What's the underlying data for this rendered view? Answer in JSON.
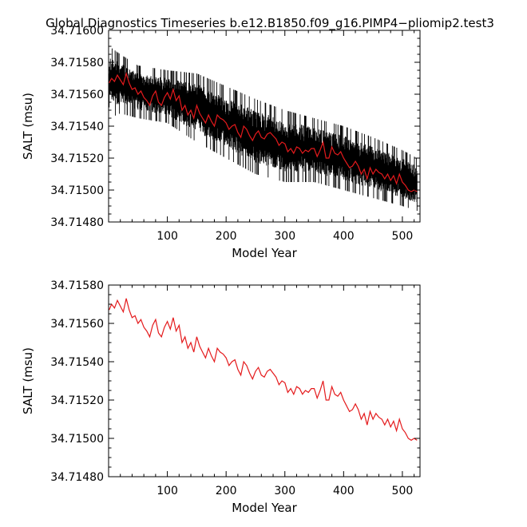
{
  "figure_title": "Global Diagnostics Timeseries b.e12.B1850.f09_g16.PIMP4−pliomip2.test3",
  "colors": {
    "monthly": "#000000",
    "annual": "#e41a1c",
    "frame": "#000000",
    "background": "#ffffff"
  },
  "chart_data": [
    {
      "type": "line",
      "xlabel": "Model Year",
      "ylabel": "SALT (msu)",
      "xlim": [
        0,
        530
      ],
      "ylim": [
        34.7148,
        34.716
      ],
      "xticks": [
        100,
        200,
        300,
        400,
        500
      ],
      "yticks": [
        34.7148,
        34.715,
        34.7152,
        34.7154,
        34.7156,
        34.7158,
        34.716
      ],
      "ytick_labels": [
        "34.71480",
        "34.71500",
        "34.71520",
        "34.71540",
        "34.71560",
        "34.71580",
        "34.71600"
      ],
      "grid": false,
      "series": [
        {
          "kind": "monthly",
          "color": "#000000",
          "x_start": 1,
          "x_end": 525,
          "envelope_upper": [
            [
              1,
              34.7159
            ],
            [
              20,
              34.71585
            ],
            [
              50,
              34.71578
            ],
            [
              100,
              34.71575
            ],
            [
              150,
              34.71573
            ],
            [
              200,
              34.71565
            ],
            [
              250,
              34.71557
            ],
            [
              300,
              34.7155
            ],
            [
              350,
              34.71545
            ],
            [
              400,
              34.7154
            ],
            [
              450,
              34.71533
            ],
            [
              500,
              34.71525
            ],
            [
              525,
              34.7152
            ]
          ],
          "envelope_lower": [
            [
              1,
              34.71545
            ],
            [
              20,
              34.71548
            ],
            [
              50,
              34.71545
            ],
            [
              100,
              34.71542
            ],
            [
              150,
              34.7153
            ],
            [
              200,
              34.7152
            ],
            [
              250,
              34.7151
            ],
            [
              300,
              34.71505
            ],
            [
              350,
              34.71505
            ],
            [
              400,
              34.715
            ],
            [
              450,
              34.71495
            ],
            [
              500,
              34.7149
            ],
            [
              525,
              34.71487
            ]
          ]
        },
        {
          "kind": "annual",
          "color": "#e41a1c",
          "x": [
            1,
            5,
            10,
            15,
            20,
            25,
            30,
            35,
            40,
            45,
            50,
            55,
            60,
            65,
            70,
            75,
            80,
            85,
            90,
            95,
            100,
            105,
            110,
            115,
            120,
            125,
            130,
            135,
            140,
            145,
            150,
            155,
            160,
            165,
            170,
            175,
            180,
            185,
            190,
            195,
            200,
            205,
            210,
            215,
            220,
            225,
            230,
            235,
            240,
            245,
            250,
            255,
            260,
            265,
            270,
            275,
            280,
            285,
            290,
            295,
            300,
            305,
            310,
            315,
            320,
            325,
            330,
            335,
            340,
            345,
            350,
            355,
            360,
            365,
            370,
            375,
            380,
            385,
            390,
            395,
            400,
            405,
            410,
            415,
            420,
            425,
            430,
            435,
            440,
            445,
            450,
            455,
            460,
            465,
            470,
            475,
            480,
            485,
            490,
            495,
            500,
            505,
            510,
            515,
            520,
            525
          ],
          "y": [
            34.71567,
            34.7157,
            34.71568,
            34.71572,
            34.71569,
            34.71566,
            34.71573,
            34.71567,
            34.71563,
            34.71564,
            34.7156,
            34.71562,
            34.71558,
            34.71556,
            34.71553,
            34.71559,
            34.71562,
            34.71555,
            34.71553,
            34.71558,
            34.71561,
            34.71557,
            34.71563,
            34.71556,
            34.71559,
            34.7155,
            34.71553,
            34.71547,
            34.7155,
            34.71545,
            34.71553,
            34.71548,
            34.71545,
            34.71542,
            34.71547,
            34.71543,
            34.7154,
            34.71547,
            34.71545,
            34.71544,
            34.71542,
            34.71538,
            34.7154,
            34.71541,
            34.71536,
            34.71533,
            34.7154,
            34.71538,
            34.71534,
            34.71531,
            34.71535,
            34.71537,
            34.71533,
            34.71532,
            34.71535,
            34.71536,
            34.71534,
            34.71532,
            34.71528,
            34.7153,
            34.71529,
            34.71524,
            34.71526,
            34.71523,
            34.71527,
            34.71526,
            34.71523,
            34.71525,
            34.71524,
            34.71526,
            34.71526,
            34.71521,
            34.71525,
            34.7153,
            34.7152,
            34.7152,
            34.71527,
            34.71523,
            34.71522,
            34.71524,
            34.7152,
            34.71517,
            34.71514,
            34.71515,
            34.71518,
            34.71515,
            34.7151,
            34.71513,
            34.71507,
            34.71514,
            34.7151,
            34.71513,
            34.71511,
            34.7151,
            34.71507,
            34.7151,
            34.71506,
            34.71509,
            34.71504,
            34.7151,
            34.71505,
            34.71503,
            34.715,
            34.71499,
            34.715,
            34.71499
          ]
        }
      ]
    },
    {
      "type": "line",
      "xlabel": "Model Year",
      "ylabel": "SALT (msu)",
      "xlim": [
        0,
        530
      ],
      "ylim": [
        34.7148,
        34.7158
      ],
      "xticks": [
        100,
        200,
        300,
        400,
        500
      ],
      "yticks": [
        34.7148,
        34.715,
        34.7152,
        34.7154,
        34.7156,
        34.7158
      ],
      "ytick_labels": [
        "34.71480",
        "34.71500",
        "34.71520",
        "34.71540",
        "34.71560",
        "34.71580"
      ],
      "grid": false,
      "series": [
        {
          "kind": "annual",
          "color": "#e41a1c",
          "x": [
            1,
            5,
            10,
            15,
            20,
            25,
            30,
            35,
            40,
            45,
            50,
            55,
            60,
            65,
            70,
            75,
            80,
            85,
            90,
            95,
            100,
            105,
            110,
            115,
            120,
            125,
            130,
            135,
            140,
            145,
            150,
            155,
            160,
            165,
            170,
            175,
            180,
            185,
            190,
            195,
            200,
            205,
            210,
            215,
            220,
            225,
            230,
            235,
            240,
            245,
            250,
            255,
            260,
            265,
            270,
            275,
            280,
            285,
            290,
            295,
            300,
            305,
            310,
            315,
            320,
            325,
            330,
            335,
            340,
            345,
            350,
            355,
            360,
            365,
            370,
            375,
            380,
            385,
            390,
            395,
            400,
            405,
            410,
            415,
            420,
            425,
            430,
            435,
            440,
            445,
            450,
            455,
            460,
            465,
            470,
            475,
            480,
            485,
            490,
            495,
            500,
            505,
            510,
            515,
            520,
            525
          ],
          "y": [
            34.71567,
            34.7157,
            34.71568,
            34.71572,
            34.71569,
            34.71566,
            34.71573,
            34.71567,
            34.71563,
            34.71564,
            34.7156,
            34.71562,
            34.71558,
            34.71556,
            34.71553,
            34.71559,
            34.71562,
            34.71555,
            34.71553,
            34.71558,
            34.71561,
            34.71557,
            34.71563,
            34.71556,
            34.71559,
            34.7155,
            34.71553,
            34.71547,
            34.7155,
            34.71545,
            34.71553,
            34.71548,
            34.71545,
            34.71542,
            34.71547,
            34.71543,
            34.7154,
            34.71547,
            34.71545,
            34.71544,
            34.71542,
            34.71538,
            34.7154,
            34.71541,
            34.71536,
            34.71533,
            34.7154,
            34.71538,
            34.71534,
            34.71531,
            34.71535,
            34.71537,
            34.71533,
            34.71532,
            34.71535,
            34.71536,
            34.71534,
            34.71532,
            34.71528,
            34.7153,
            34.71529,
            34.71524,
            34.71526,
            34.71523,
            34.71527,
            34.71526,
            34.71523,
            34.71525,
            34.71524,
            34.71526,
            34.71526,
            34.71521,
            34.71525,
            34.7153,
            34.7152,
            34.7152,
            34.71527,
            34.71523,
            34.71522,
            34.71524,
            34.7152,
            34.71517,
            34.71514,
            34.71515,
            34.71518,
            34.71515,
            34.7151,
            34.71513,
            34.71507,
            34.71514,
            34.7151,
            34.71513,
            34.71511,
            34.7151,
            34.71507,
            34.7151,
            34.71506,
            34.71509,
            34.71504,
            34.7151,
            34.71505,
            34.71503,
            34.715,
            34.71499,
            34.715,
            34.71499
          ]
        }
      ]
    }
  ]
}
